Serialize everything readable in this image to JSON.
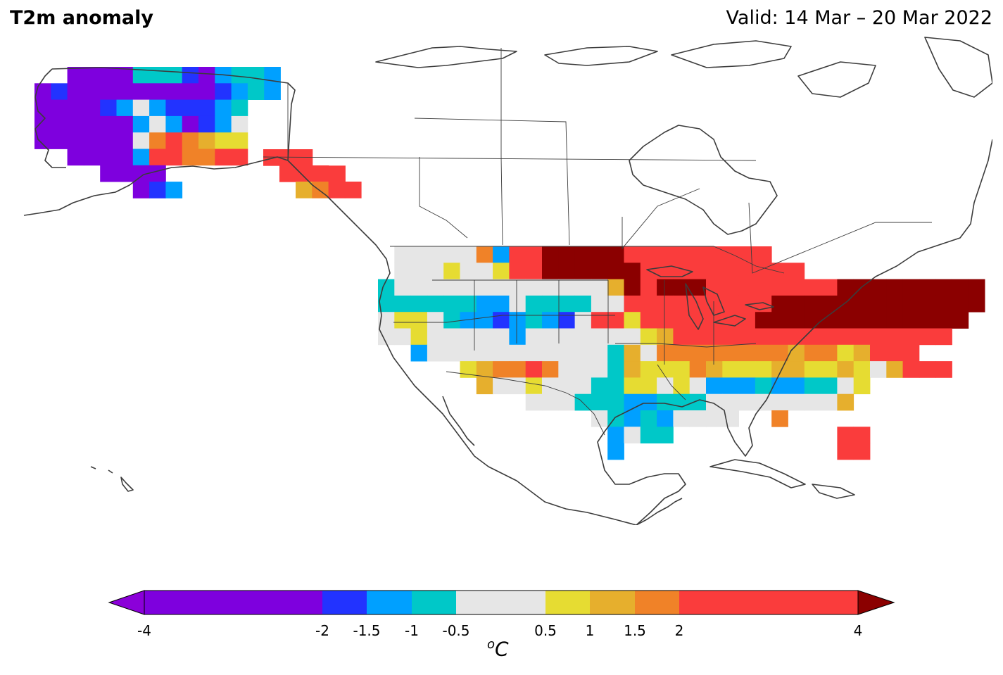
{
  "header": {
    "title": "T2m anomaly",
    "valid": "Valid: 14 Mar – 20 Mar 2022"
  },
  "colorbar": {
    "ticks": [
      "-4",
      "-2",
      "-1.5",
      "-1",
      "-0.5",
      "0.5",
      "1",
      "1.5",
      "2",
      "4"
    ],
    "unit_base": "C",
    "unit_sup": "o",
    "colors": {
      "below_min": "#8B00D9",
      "lt_m2": "#7E00DE",
      "m2_m1_5": "#2233FF",
      "m1_5_m1": "#00A0FF",
      "m1_m0_5": "#00C8C8",
      "m0_5_0_5": "#E6E6E6",
      "p0_5_p1": "#E6DC32",
      "p1_p1_5": "#E6AF2D",
      "p1_5_p2": "#F08228",
      "p2_p4": "#FA3C3C",
      "above_max": "#8B0000"
    }
  },
  "legend_bins": [
    {
      "range": "< -2",
      "color": "#7E00DE"
    },
    {
      "range": "-2 to -1.5",
      "color": "#2233FF"
    },
    {
      "range": "-1.5 to -1",
      "color": "#00A0FF"
    },
    {
      "range": "-1 to -0.5",
      "color": "#00C8C8"
    },
    {
      "range": "-0.5 to 0.5",
      "color": "#E6E6E6"
    },
    {
      "range": "0.5 to 1",
      "color": "#E6DC32"
    },
    {
      "range": "1 to 1.5",
      "color": "#E6AF2D"
    },
    {
      "range": "1.5 to 2",
      "color": "#F08228"
    },
    {
      "range": "2 to 4",
      "color": "#FA3C3C"
    },
    {
      "range": "> 4",
      "color": "#8B0000"
    }
  ],
  "regions": {
    "alaska": "mostly below -2 west/north; -1 to -0.5 and +1.5 to +2 along south coast",
    "alaska_panhandle_bc": "+2 to +4",
    "us_west": "near normal with pockets of -2 to -0.5",
    "us_northern_plains_upper_midwest": "+2 to +4, above +4 in Dakotas/Minnesota",
    "us_east_northeast": "above +4",
    "us_gulf_coast": "-1.5 to -0.5 and near normal",
    "florida": "+2 to +4"
  }
}
